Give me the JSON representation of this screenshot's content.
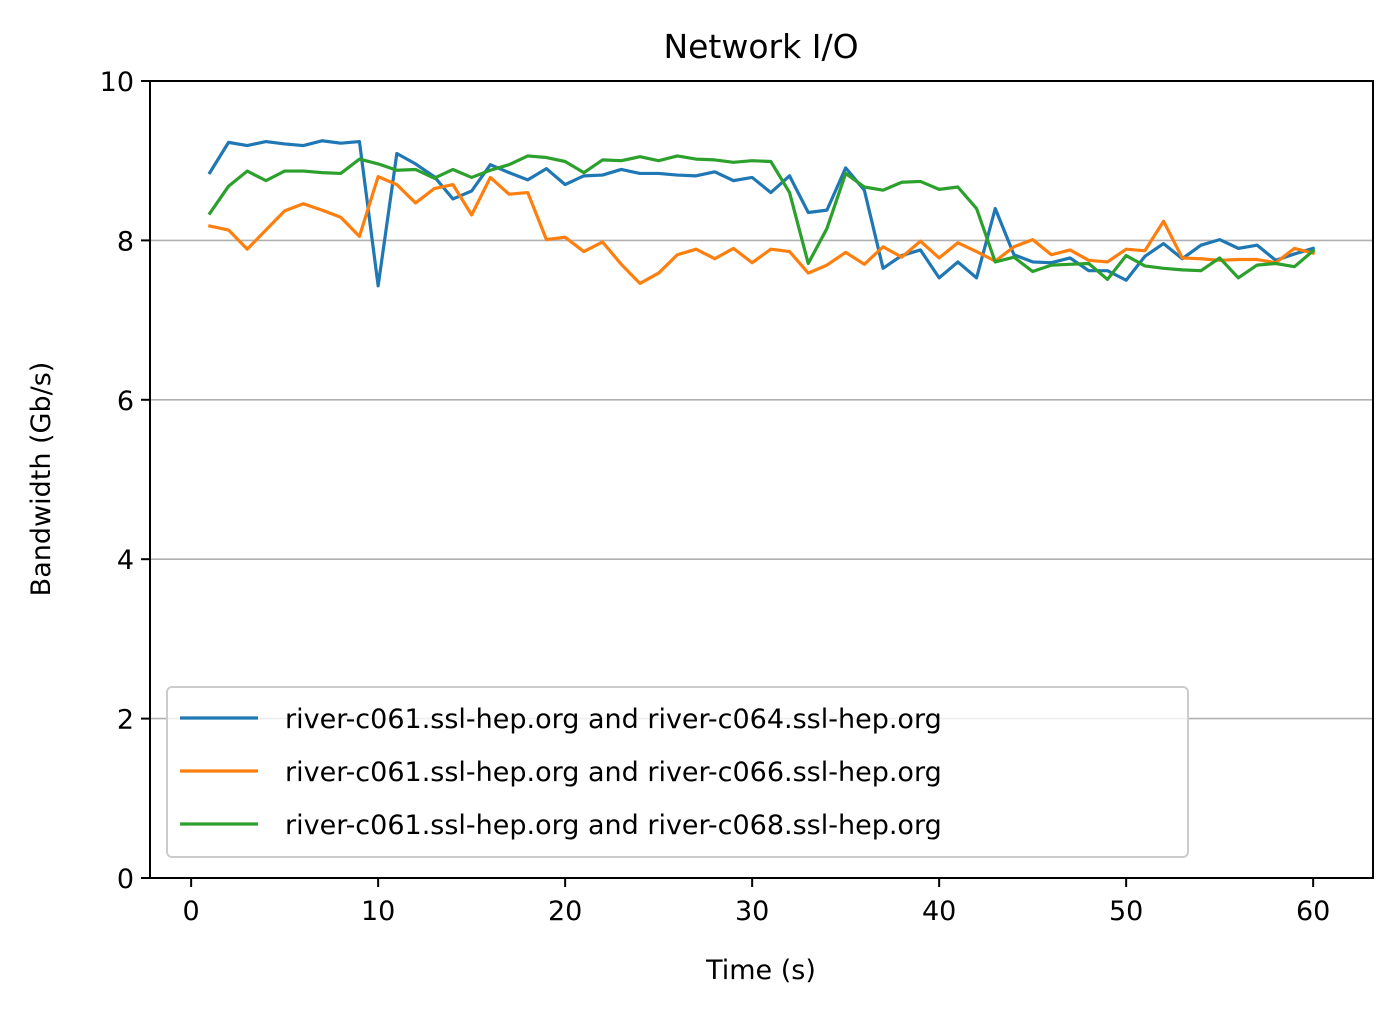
{
  "chart_data": {
    "type": "line",
    "title": "Network I/O",
    "xlabel": "Time (s)",
    "ylabel": "Bandwidth (Gb/s)",
    "xlim": [
      -2.2,
      63.2
    ],
    "ylim": [
      0,
      10
    ],
    "xticks": [
      0,
      10,
      20,
      30,
      40,
      50,
      60
    ],
    "yticks": [
      0,
      2,
      4,
      6,
      8,
      10
    ],
    "grid": "y",
    "legend_position": "lower-left",
    "x": [
      1,
      2,
      3,
      4,
      5,
      6,
      7,
      8,
      9,
      10,
      11,
      12,
      13,
      14,
      15,
      16,
      17,
      18,
      19,
      20,
      21,
      22,
      23,
      24,
      25,
      26,
      27,
      28,
      29,
      30,
      31,
      32,
      33,
      34,
      35,
      36,
      37,
      38,
      39,
      40,
      41,
      42,
      43,
      44,
      45,
      46,
      47,
      48,
      49,
      50,
      51,
      52,
      53,
      54,
      55,
      56,
      57,
      58,
      59,
      60
    ],
    "series": [
      {
        "name": "river-c061.ssl-hep.org and river-c064.ssl-hep.org",
        "color": "#1f77b4",
        "values": [
          8.85,
          9.23,
          9.19,
          9.24,
          9.21,
          9.19,
          9.25,
          9.22,
          9.24,
          7.43,
          9.09,
          8.96,
          8.8,
          8.52,
          8.62,
          8.95,
          8.85,
          8.76,
          8.9,
          8.7,
          8.81,
          8.82,
          8.89,
          8.84,
          8.84,
          8.82,
          8.81,
          8.86,
          8.75,
          8.79,
          8.6,
          8.81,
          8.35,
          8.38,
          8.91,
          8.63,
          7.65,
          7.81,
          7.88,
          7.53,
          7.73,
          7.53,
          8.4,
          7.82,
          7.73,
          7.72,
          7.78,
          7.62,
          7.62,
          7.5,
          7.8,
          7.96,
          7.77,
          7.94,
          8.01,
          7.9,
          7.94,
          7.75,
          7.83,
          7.9
        ]
      },
      {
        "name": "river-c061.ssl-hep.org and river-c066.ssl-hep.org",
        "color": "#ff7f0e",
        "values": [
          8.18,
          8.13,
          7.89,
          8.13,
          8.37,
          8.46,
          8.38,
          8.29,
          8.05,
          8.8,
          8.7,
          8.47,
          8.65,
          8.7,
          8.32,
          8.79,
          8.58,
          8.6,
          8.01,
          8.04,
          7.86,
          7.98,
          7.7,
          7.46,
          7.59,
          7.82,
          7.89,
          7.77,
          7.9,
          7.72,
          7.89,
          7.86,
          7.59,
          7.69,
          7.85,
          7.7,
          7.92,
          7.79,
          7.99,
          7.78,
          7.97,
          7.86,
          7.74,
          7.92,
          8.01,
          7.82,
          7.88,
          7.75,
          7.73,
          7.89,
          7.87,
          8.24,
          7.78,
          7.77,
          7.75,
          7.76,
          7.76,
          7.72,
          7.9,
          7.84
        ]
      },
      {
        "name": "river-c061.ssl-hep.org and river-c068.ssl-hep.org",
        "color": "#2ca02c",
        "values": [
          8.34,
          8.68,
          8.87,
          8.75,
          8.87,
          8.87,
          8.85,
          8.84,
          9.02,
          8.96,
          8.88,
          8.89,
          8.78,
          8.89,
          8.79,
          8.88,
          8.95,
          9.06,
          9.04,
          8.99,
          8.85,
          9.01,
          9.0,
          9.05,
          9.0,
          9.06,
          9.02,
          9.01,
          8.98,
          9.0,
          8.99,
          8.6,
          7.71,
          8.15,
          8.84,
          8.67,
          8.63,
          8.73,
          8.74,
          8.64,
          8.67,
          8.4,
          7.73,
          7.79,
          7.61,
          7.69,
          7.7,
          7.71,
          7.51,
          7.81,
          7.68,
          7.65,
          7.63,
          7.62,
          7.78,
          7.53,
          7.69,
          7.71,
          7.67,
          7.87
        ]
      }
    ]
  }
}
